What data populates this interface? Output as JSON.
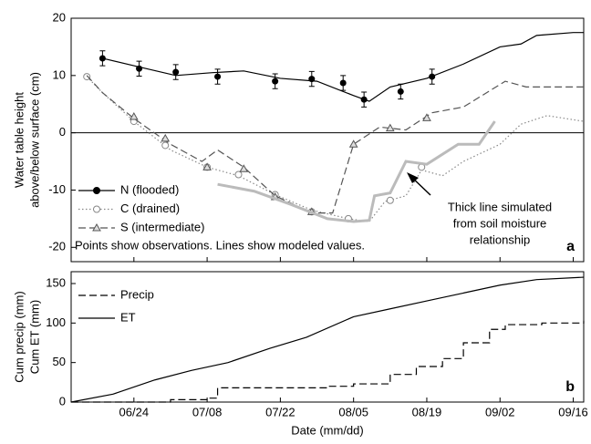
{
  "chart_data": [
    {
      "type": "line",
      "ylabel": [
        "Water table height",
        "above/below surface (cm)"
      ],
      "xlim": [
        "06/12",
        "09/18"
      ],
      "ylim": [
        -22.5,
        20
      ],
      "yticks": [
        20,
        10,
        0,
        -10,
        -20
      ],
      "zero_line": true,
      "panel_label": "a",
      "note": "Points show observations. Lines show modeled values.",
      "annotation": [
        "Thick line simulated",
        "from soil moisture",
        "relationship"
      ],
      "legend": "lower left",
      "series": [
        {
          "name": "N (flooded)",
          "color": "#000000",
          "style": "solid",
          "marker": "circle-filled",
          "line_x": [
            "06/18",
            "06/25",
            "07/02",
            "07/09",
            "07/15",
            "07/22",
            "07/29",
            "08/05",
            "08/08",
            "08/12",
            "08/19",
            "08/26",
            "09/02",
            "09/06",
            "09/09",
            "09/16",
            "09/18"
          ],
          "line_values": [
            13,
            11.5,
            10,
            10.5,
            10.8,
            9.5,
            9,
            6.5,
            5.5,
            8,
            9.5,
            12,
            15,
            15.5,
            17,
            17.5,
            17.5
          ],
          "obs_x": [
            "06/18",
            "06/25",
            "07/02",
            "07/10",
            "07/21",
            "07/28",
            "08/03",
            "08/07",
            "08/14",
            "08/20"
          ],
          "obs_values": [
            13,
            11.2,
            10.6,
            9.8,
            9,
            9.4,
            8.7,
            5.8,
            7.2,
            9.8
          ],
          "obs_errors": [
            1.3,
            1.3,
            1.3,
            1.3,
            1.3,
            1.3,
            1.3,
            1.3,
            1.3,
            1.3
          ]
        },
        {
          "name": "C (drained)",
          "color": "#888888",
          "style": "dotted",
          "marker": "circle-open",
          "line_x": [
            "06/15",
            "06/18",
            "06/24",
            "07/01",
            "07/08",
            "07/14",
            "07/21",
            "07/28",
            "08/04",
            "08/08",
            "08/11",
            "08/15",
            "08/18",
            "08/22",
            "08/26",
            "09/02",
            "09/06",
            "09/11",
            "09/18"
          ],
          "line_values": [
            9.8,
            7,
            2,
            -3,
            -6,
            -7.5,
            -10.8,
            -13.5,
            -15,
            -15.5,
            -12,
            -11,
            -6.5,
            -7.5,
            -5,
            -2,
            1.5,
            3,
            2
          ],
          "obs_x": [
            "06/15",
            "06/24",
            "06/30",
            "07/08",
            "07/14",
            "07/21",
            "07/28",
            "08/04",
            "08/12",
            "08/18"
          ],
          "obs_values": [
            9.8,
            2,
            -2.2,
            -6,
            -7.3,
            -10.8,
            -13.8,
            -15,
            -11.8,
            -6
          ]
        },
        {
          "name": "S (intermediate)",
          "color": "#555555",
          "style": "dashed",
          "marker": "triangle",
          "line_x": [
            "06/15",
            "06/18",
            "06/24",
            "07/01",
            "07/07",
            "07/10",
            "07/15",
            "07/21",
            "07/28",
            "08/01",
            "08/05",
            "08/10",
            "08/15",
            "08/20",
            "08/26",
            "09/03",
            "09/07",
            "09/11",
            "09/18"
          ],
          "line_values": [
            10,
            7,
            2.5,
            -2,
            -5,
            -3,
            -6,
            -11,
            -14,
            -14,
            -2,
            1,
            0.5,
            3.5,
            4.5,
            9,
            8,
            8,
            8
          ],
          "obs_x": [
            "06/24",
            "06/30",
            "07/08",
            "07/15",
            "07/21",
            "07/28",
            "08/05",
            "08/12",
            "08/19"
          ],
          "obs_values": [
            2.8,
            -1,
            -6,
            -6.3,
            -11.2,
            -13.8,
            -2,
            0.8,
            2.6
          ]
        },
        {
          "color": "#bbbbbb",
          "style": "thick",
          "line_x": [
            "07/10",
            "07/17",
            "07/24",
            "07/31",
            "08/05",
            "08/08",
            "08/09",
            "08/12",
            "08/15",
            "08/19",
            "08/25",
            "08/29",
            "09/01"
          ],
          "line_values": [
            -9,
            -10.2,
            -12.5,
            -15,
            -15.5,
            -15.3,
            -11,
            -10.5,
            -5,
            -5.5,
            -2,
            -2,
            2
          ]
        }
      ]
    },
    {
      "type": "line",
      "ylabel": [
        "Cum precip (mm)",
        "Cum ET (mm)"
      ],
      "xlabel": "Date (mm/dd)",
      "xlim": [
        "06/12",
        "09/18"
      ],
      "xticks": [
        "06/24",
        "07/08",
        "07/22",
        "08/05",
        "08/19",
        "09/02",
        "09/16"
      ],
      "ylim": [
        0,
        165
      ],
      "yticks": [
        0,
        50,
        100,
        150
      ],
      "panel_label": "b",
      "legend": "upper left",
      "series": [
        {
          "name": "Precip",
          "color": "#000000",
          "style": "dashed",
          "step": true,
          "line_x": [
            "06/12",
            "06/28",
            "07/01",
            "07/08",
            "07/10",
            "07/31",
            "08/05",
            "08/12",
            "08/17",
            "08/22",
            "08/26",
            "08/31",
            "09/03",
            "09/10",
            "09/18"
          ],
          "line_values": [
            0,
            0,
            3,
            5,
            18,
            20,
            23,
            35,
            45,
            55,
            75,
            92,
            98,
            100,
            103
          ]
        },
        {
          "name": "ET",
          "color": "#000000",
          "style": "solid",
          "line_x": [
            "06/12",
            "06/20",
            "06/28",
            "07/05",
            "07/12",
            "07/20",
            "07/27",
            "08/05",
            "08/12",
            "08/19",
            "08/26",
            "09/02",
            "09/09",
            "09/18"
          ],
          "line_values": [
            0,
            10,
            28,
            40,
            50,
            68,
            82,
            108,
            118,
            128,
            138,
            148,
            155,
            158
          ]
        }
      ]
    }
  ]
}
